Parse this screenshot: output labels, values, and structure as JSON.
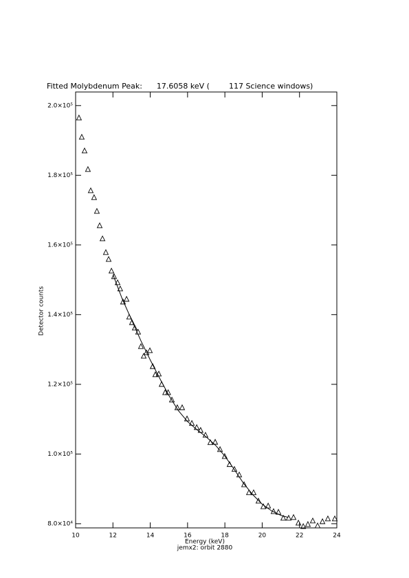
{
  "chart_data": {
    "type": "scatter",
    "title": "Fitted Molybdenum Peak:      17.6058 keV (        117 Science windows)",
    "x_label": "Energy (keV)",
    "y_label": "Detector counts",
    "subtitle": "jemx2: orbit 2880",
    "xlim": [
      10,
      24
    ],
    "ylim": [
      78800,
      203900
    ],
    "xticks": [
      10,
      12,
      14,
      16,
      18,
      20,
      22,
      24
    ],
    "yticks": [
      {
        "value": 80000,
        "label": "8.0×10⁴"
      },
      {
        "value": 100000,
        "label": "1.0×10⁵"
      },
      {
        "value": 120000,
        "label": "1.2×10⁵"
      },
      {
        "value": 140000,
        "label": "1.4×10⁵"
      },
      {
        "value": 160000,
        "label": "1.6×10⁵"
      },
      {
        "value": 180000,
        "label": "1.8×10⁵"
      },
      {
        "value": 200000,
        "label": "2.0×10⁵"
      }
    ],
    "series": [
      {
        "marker": "triangle",
        "color": "#000000",
        "x": [
          10.18,
          10.33,
          10.48,
          10.66,
          10.81,
          10.99,
          11.14,
          11.29,
          11.44,
          11.62,
          11.77,
          11.92,
          12.06,
          12.25,
          12.39,
          12.54,
          12.73,
          12.87,
          13.02,
          13.17,
          13.35,
          13.5,
          13.65,
          13.8,
          13.98,
          14.13,
          14.27,
          14.46,
          14.61,
          14.8,
          14.96,
          15.16,
          15.45,
          15.71,
          15.97,
          16.23,
          16.49,
          16.7,
          16.96,
          17.22,
          17.48,
          17.74,
          17.99,
          18.25,
          18.51,
          18.77,
          19.03,
          19.29,
          19.54,
          19.8,
          20.06,
          20.32,
          20.61,
          20.87,
          21.13,
          21.42,
          21.68,
          21.94,
          22.2,
          22.45,
          22.71,
          22.97,
          23.23,
          23.52,
          23.89
        ],
        "values": [
          196450,
          190930,
          187000,
          181670,
          175560,
          173600,
          169650,
          165520,
          161770,
          157830,
          155860,
          152510,
          150930,
          149160,
          147390,
          143640,
          144430,
          139310,
          137730,
          136160,
          134980,
          130840,
          128080,
          129070,
          129660,
          125120,
          122760,
          122960,
          120000,
          117630,
          117630,
          115500,
          113300,
          113300,
          110100,
          108800,
          107600,
          106800,
          105400,
          103300,
          103400,
          101300,
          99300,
          97000,
          95600,
          94000,
          91200,
          88900,
          88900,
          86500,
          84900,
          85100,
          83500,
          83300,
          81600,
          81600,
          81800,
          80200,
          79200,
          79800,
          80800,
          79400,
          80600,
          81400,
          81400
        ]
      },
      {
        "marker": "line",
        "color": "#000000",
        "x": [
          12,
          12.5,
          13,
          13.5,
          14,
          14.5,
          15,
          15.5,
          16,
          16.5,
          17,
          17.5,
          18,
          18.5,
          19,
          19.5,
          20,
          20.5,
          21,
          21.4
        ],
        "values": [
          151500,
          144500,
          138500,
          132500,
          127000,
          121800,
          116800,
          112500,
          109300,
          107000,
          104900,
          102500,
          99400,
          95600,
          91600,
          88300,
          85600,
          83700,
          82400,
          81800
        ]
      }
    ]
  }
}
